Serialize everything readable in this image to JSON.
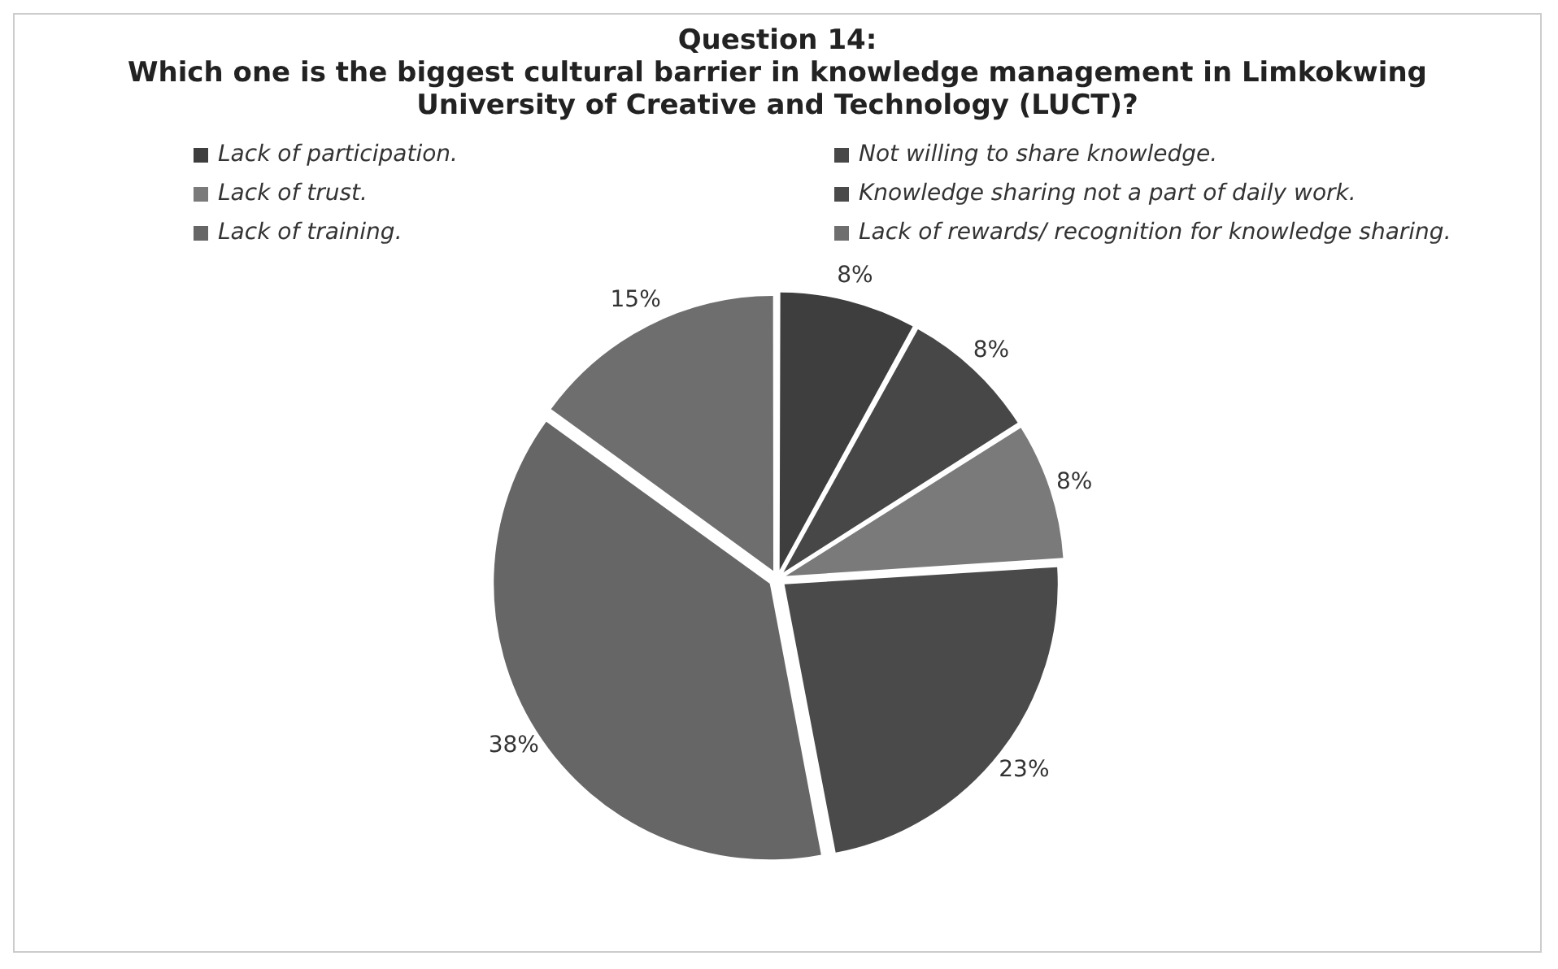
{
  "chart_data": {
    "type": "pie",
    "title": "Question 14:",
    "subtitle": "Which one is the biggest cultural barrier in knowledge management in Limkokwing University of Creative and Technology (LUCT)?",
    "categories": [
      "Lack of participation.",
      "Not willing to share knowledge.",
      "Lack of trust.",
      "Knowledge sharing not a part of daily work.",
      "Lack of training.",
      "Lack of rewards/ recognition for knowledge sharing."
    ],
    "values": [
      8,
      8,
      8,
      23,
      38,
      15
    ],
    "value_labels": [
      "8%",
      "8%",
      "8%",
      "23%",
      "38%",
      "15%"
    ],
    "colors": [
      "#3e3e3e",
      "#474747",
      "#7a7a7a",
      "#4a4a4a",
      "#666666",
      "#6e6e6e"
    ],
    "legend": "top"
  }
}
